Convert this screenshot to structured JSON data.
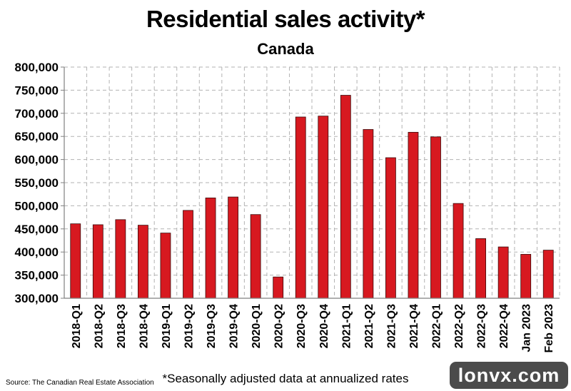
{
  "chart_data": {
    "type": "bar",
    "title": "Residential sales activity*",
    "subtitle": "Canada",
    "categories": [
      "2018-Q1",
      "2018-Q2",
      "2018-Q3",
      "2018-Q4",
      "2019-Q1",
      "2019-Q2",
      "2019-Q3",
      "2019-Q4",
      "2020-Q1",
      "2020-Q2",
      "2020-Q3",
      "2020-Q4",
      "2021-Q1",
      "2021-Q2",
      "2021-Q3",
      "2021-Q4",
      "2022-Q1",
      "2022-Q2",
      "2022-Q3",
      "2022-Q4",
      "Jan 2023",
      "Feb 2023"
    ],
    "values": [
      461000,
      459000,
      470000,
      458000,
      441000,
      490000,
      517000,
      519000,
      481000,
      346000,
      692000,
      694000,
      739000,
      665000,
      604000,
      659000,
      649000,
      505000,
      429000,
      411000,
      395000,
      404000
    ],
    "ylim": [
      300000,
      800000
    ],
    "yticks": [
      "300,000",
      "350,000",
      "400,000",
      "450,000",
      "500,000",
      "550,000",
      "600,000",
      "650,000",
      "700,000",
      "750,000",
      "800,000"
    ],
    "xlabel": "",
    "ylabel": "",
    "grid": true,
    "bar_color": "#d71920",
    "bar_edge_color": "#3a0a0a"
  },
  "source": "Source: The Canadian Real Estate Association",
  "footnote": "*Seasonally adjusted data at annualized rates",
  "watermark": "lonvx.com"
}
